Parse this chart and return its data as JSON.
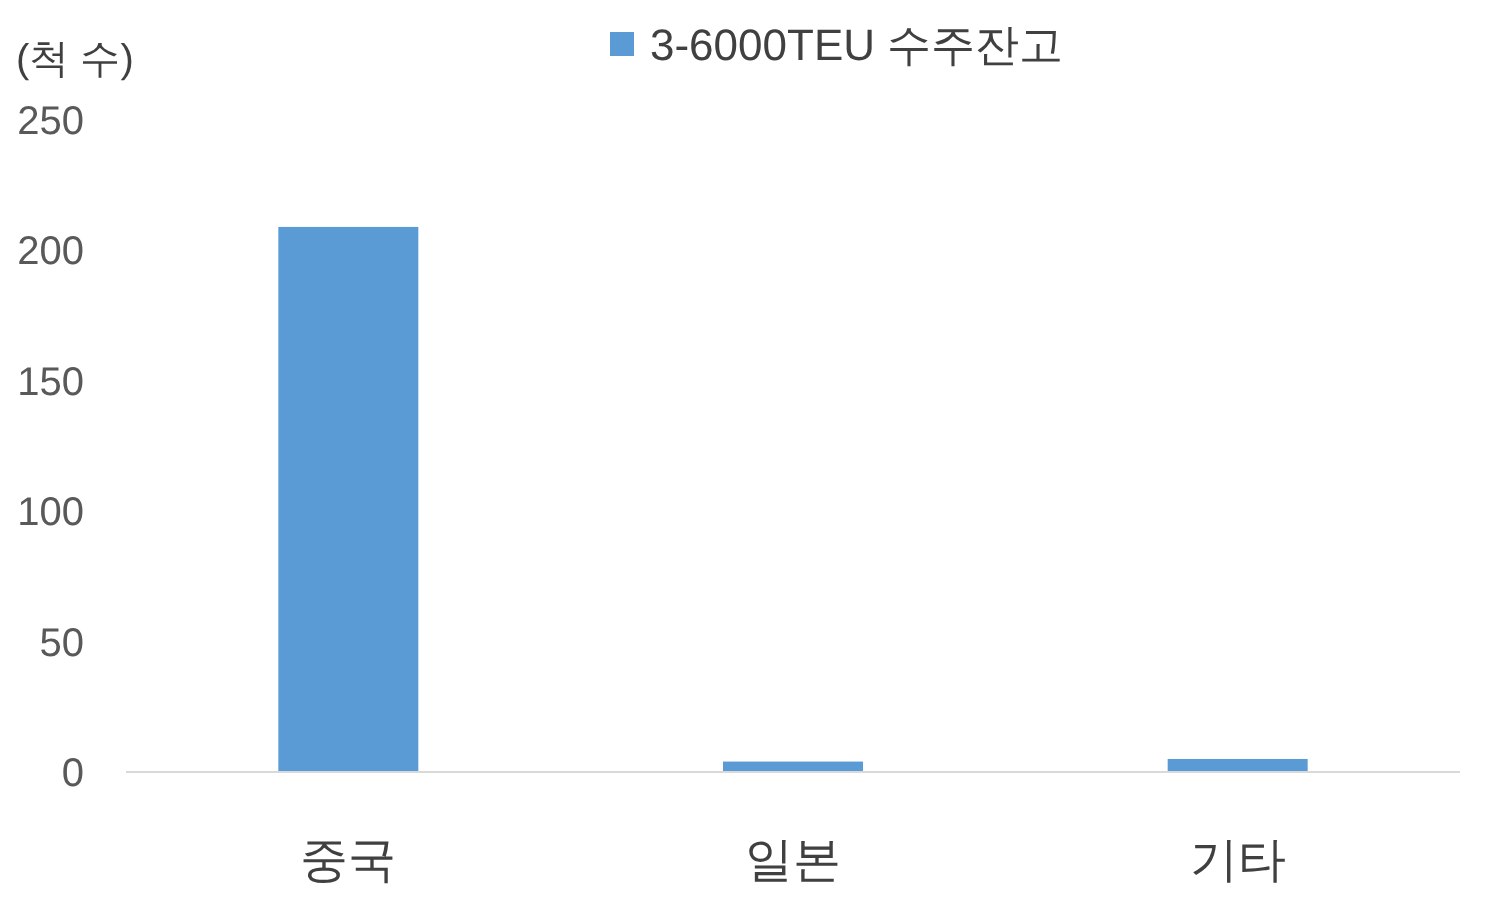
{
  "chart_data": {
    "type": "bar",
    "ylabel": "(척 수)",
    "categories": [
      "중국",
      "일본",
      "기타"
    ],
    "series": [
      {
        "name": "3-6000TEU 수주잔고",
        "color": "#5b9bd5",
        "values": [
          209,
          4,
          5
        ]
      }
    ],
    "ylim": [
      0,
      250
    ],
    "yticks": [
      0,
      50,
      100,
      150,
      200,
      250
    ],
    "grid": false,
    "legend": "top"
  }
}
